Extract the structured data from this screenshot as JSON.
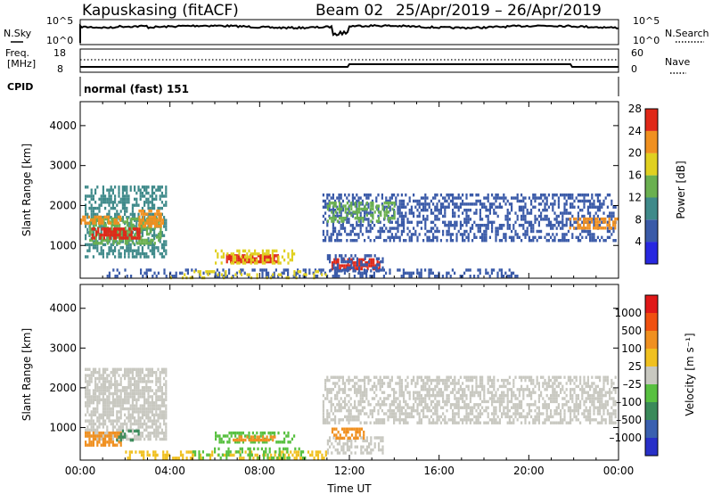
{
  "header": {
    "station": "Kapuskasing (fitACF)",
    "beam": "Beam 02",
    "dates": "25/Apr/2019 – 26/Apr/2019"
  },
  "chart_data": [
    {
      "type": "line",
      "panel": "noise",
      "left_label": "N.Sky",
      "right_label": "N.Search",
      "left_ticks": [
        "10^5",
        "10^0"
      ],
      "right_ticks": [
        "10^5",
        "10^0"
      ],
      "series": [
        {
          "name": "N.Sky",
          "style": "solid"
        },
        {
          "name": "N.Search",
          "style": "dotted"
        }
      ]
    },
    {
      "type": "line",
      "panel": "frequency",
      "left_label_top": "Freq.",
      "left_label_bottom": "[MHz]",
      "right_label": "Nave",
      "left_ticks": [
        "18",
        "8"
      ],
      "right_ticks": [
        "60",
        "0"
      ],
      "series": [
        {
          "name": "Nave",
          "style": "dotted",
          "value": 48
        }
      ]
    },
    {
      "type": "text",
      "panel": "cpid",
      "label": "CPID",
      "mode": "normal (fast) 151"
    },
    {
      "type": "heatmap",
      "panel": "power",
      "ylabel": "Slant Range [km]",
      "y_ticks": [
        1000,
        2000,
        3000,
        4000
      ],
      "ylim": [
        180,
        4600
      ],
      "xlim_hours": [
        0,
        24
      ],
      "colorbar": {
        "label": "Power [dB]",
        "ticks": [
          "4",
          "8",
          "12",
          "16",
          "20",
          "24",
          "28"
        ],
        "colors": [
          "#2828e0",
          "#3a5aa8",
          "#3f8a8a",
          "#6ab050",
          "#e0d020",
          "#f09020",
          "#e02818"
        ]
      },
      "regions": [
        {
          "t0": 0.2,
          "t1": 3.8,
          "r0": 700,
          "r1": 2500,
          "color": "#3f8a8a",
          "density": 0.55
        },
        {
          "t0": 0.4,
          "t1": 3.6,
          "r0": 1050,
          "r1": 1700,
          "color": "#6ab050",
          "density": 0.6
        },
        {
          "t0": 0.5,
          "t1": 2.6,
          "r0": 1150,
          "r1": 1450,
          "color": "#e02818",
          "density": 0.8
        },
        {
          "t0": 2.6,
          "t1": 3.7,
          "r0": 1450,
          "r1": 1900,
          "color": "#f09020",
          "density": 0.7
        },
        {
          "t0": 0.0,
          "t1": 1.8,
          "r0": 1550,
          "r1": 1750,
          "color": "#f09020",
          "density": 0.7
        },
        {
          "t0": 10.8,
          "t1": 23.9,
          "r0": 1100,
          "r1": 2300,
          "color": "#3a5aa8",
          "density": 0.45
        },
        {
          "t0": 11.0,
          "t1": 14.0,
          "r0": 1600,
          "r1": 2100,
          "color": "#6ab050",
          "density": 0.5
        },
        {
          "t0": 21.8,
          "t1": 23.9,
          "r0": 1400,
          "r1": 1700,
          "color": "#f09020",
          "density": 0.6
        },
        {
          "t0": 6.5,
          "t1": 8.8,
          "r0": 620,
          "r1": 780,
          "color": "#e02818",
          "density": 0.85
        },
        {
          "t0": 6.0,
          "t1": 9.5,
          "r0": 550,
          "r1": 900,
          "color": "#e0d020",
          "density": 0.45
        },
        {
          "t0": 11.2,
          "t1": 13.3,
          "r0": 450,
          "r1": 680,
          "color": "#e02818",
          "density": 0.7
        },
        {
          "t0": 11.0,
          "t1": 13.5,
          "r0": 380,
          "r1": 780,
          "color": "#3a5aa8",
          "density": 0.4
        },
        {
          "t0": 1.0,
          "t1": 19.5,
          "r0": 200,
          "r1": 420,
          "color": "#3a5aa8",
          "density": 0.35
        },
        {
          "t0": 4.0,
          "t1": 11.0,
          "r0": 200,
          "r1": 380,
          "color": "#e0d020",
          "density": 0.25
        }
      ]
    },
    {
      "type": "heatmap",
      "panel": "velocity",
      "ylabel": "Slant Range [km]",
      "xlabel": "Time UT",
      "y_ticks": [
        1000,
        2000,
        3000,
        4000
      ],
      "ylim": [
        180,
        4600
      ],
      "xlim_hours": [
        0,
        24
      ],
      "x_ticks": [
        "00:00",
        "04:00",
        "08:00",
        "12:00",
        "16:00",
        "20:00",
        "00:00"
      ],
      "colorbar": {
        "label": "Velocity [m s⁻¹]",
        "ticks": [
          "1000",
          "500",
          "100",
          "25",
          "–25",
          "–100",
          "–500",
          "–1000"
        ],
        "colors": [
          "#2830c8",
          "#3a60b0",
          "#3a8a5a",
          "#58c040",
          "#c8c8c0",
          "#f0c020",
          "#f09020",
          "#f05010",
          "#e01818"
        ]
      },
      "regions": [
        {
          "t0": 0.2,
          "t1": 3.8,
          "r0": 700,
          "r1": 2500,
          "color": "#c8c8c0",
          "density": 0.7
        },
        {
          "t0": 10.8,
          "t1": 23.9,
          "r0": 1100,
          "r1": 2300,
          "color": "#c8c8c0",
          "density": 0.55
        },
        {
          "t0": 0.2,
          "t1": 1.8,
          "r0": 550,
          "r1": 900,
          "color": "#f09020",
          "density": 0.7
        },
        {
          "t0": 1.6,
          "t1": 2.6,
          "r0": 650,
          "r1": 950,
          "color": "#3a8a5a",
          "density": 0.4
        },
        {
          "t0": 6.0,
          "t1": 9.5,
          "r0": 600,
          "r1": 900,
          "color": "#58c040",
          "density": 0.55
        },
        {
          "t0": 6.8,
          "t1": 8.8,
          "r0": 650,
          "r1": 800,
          "color": "#f09020",
          "density": 0.7
        },
        {
          "t0": 11.0,
          "t1": 13.5,
          "r0": 380,
          "r1": 780,
          "color": "#c8c8c0",
          "density": 0.5
        },
        {
          "t0": 11.2,
          "t1": 12.6,
          "r0": 700,
          "r1": 1000,
          "color": "#f09020",
          "density": 0.6
        },
        {
          "t0": 2.0,
          "t1": 11.0,
          "r0": 200,
          "r1": 420,
          "color": "#f0c020",
          "density": 0.4
        },
        {
          "t0": 5.0,
          "t1": 10.0,
          "r0": 200,
          "r1": 500,
          "color": "#58c040",
          "density": 0.3
        }
      ]
    }
  ]
}
